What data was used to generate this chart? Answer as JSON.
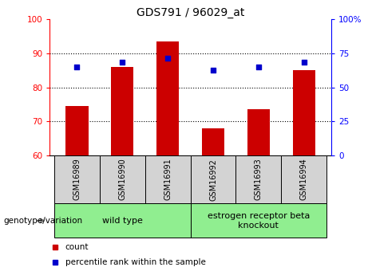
{
  "title": "GDS791 / 96029_at",
  "categories": [
    "GSM16989",
    "GSM16990",
    "GSM16991",
    "GSM16992",
    "GSM16993",
    "GSM16994"
  ],
  "bar_values": [
    74.5,
    86.0,
    93.5,
    68.0,
    73.5,
    85.0
  ],
  "scatter_values": [
    86.0,
    87.5,
    88.5,
    85.0,
    86.0,
    87.5
  ],
  "ylim_left": [
    60,
    100
  ],
  "ylim_right": [
    0,
    100
  ],
  "yticks_left": [
    60,
    70,
    80,
    90,
    100
  ],
  "yticks_right": [
    0,
    25,
    50,
    75,
    100
  ],
  "ytick_labels_right": [
    "0",
    "25",
    "50",
    "75",
    "100%"
  ],
  "bar_color": "#cc0000",
  "scatter_color": "#0000cc",
  "grid_lines": [
    70,
    80,
    90
  ],
  "group1_label": "wild type",
  "group2_label": "estrogen receptor beta\nknockout",
  "genotype_label": "genotype/variation",
  "legend_count": "count",
  "legend_percentile": "percentile rank within the sample",
  "group1_color": "#90ee90",
  "group2_color": "#90ee90",
  "tick_label_bg": "#d3d3d3",
  "title_fontsize": 10,
  "tick_fontsize": 7.5,
  "label_fontsize": 7,
  "group_fontsize": 8,
  "legend_fontsize": 7.5
}
